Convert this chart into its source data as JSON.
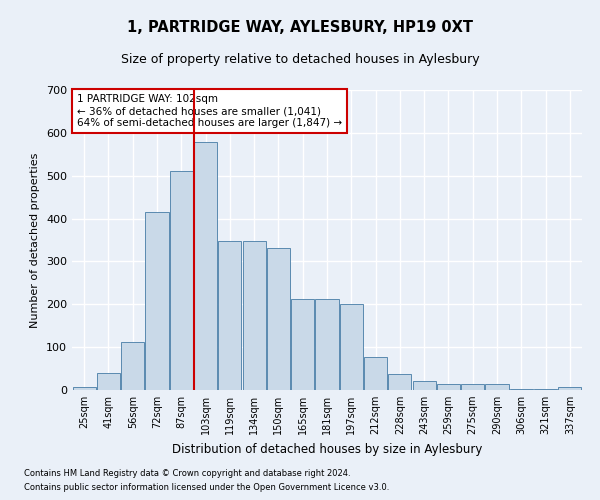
{
  "title": "1, PARTRIDGE WAY, AYLESBURY, HP19 0XT",
  "subtitle": "Size of property relative to detached houses in Aylesbury",
  "xlabel": "Distribution of detached houses by size in Aylesbury",
  "ylabel": "Number of detached properties",
  "categories": [
    "25sqm",
    "41sqm",
    "56sqm",
    "72sqm",
    "87sqm",
    "103sqm",
    "119sqm",
    "134sqm",
    "150sqm",
    "165sqm",
    "181sqm",
    "197sqm",
    "212sqm",
    "228sqm",
    "243sqm",
    "259sqm",
    "275sqm",
    "290sqm",
    "306sqm",
    "321sqm",
    "337sqm"
  ],
  "values": [
    8,
    40,
    113,
    415,
    510,
    578,
    347,
    347,
    332,
    213,
    213,
    200,
    78,
    37,
    20,
    13,
    15,
    15,
    3,
    3,
    7
  ],
  "bar_color": "#c9d9e8",
  "bar_edge_color": "#5a8ab0",
  "highlight_index": 5,
  "highlight_color": "#cc0000",
  "annotation_text": "1 PARTRIDGE WAY: 102sqm\n← 36% of detached houses are smaller (1,041)\n64% of semi-detached houses are larger (1,847) →",
  "annotation_box_color": "white",
  "annotation_box_edge_color": "#cc0000",
  "footnote1": "Contains HM Land Registry data © Crown copyright and database right 2024.",
  "footnote2": "Contains public sector information licensed under the Open Government Licence v3.0.",
  "ylim": [
    0,
    700
  ],
  "yticks": [
    0,
    100,
    200,
    300,
    400,
    500,
    600,
    700
  ],
  "background_color": "#eaf0f8",
  "plot_background_color": "#eaf0f8",
  "grid_color": "#ffffff",
  "title_fontsize": 10.5,
  "subtitle_fontsize": 9,
  "ylabel_fontsize": 8,
  "xlabel_fontsize": 8.5,
  "tick_fontsize": 7,
  "annotation_fontsize": 7.5,
  "footnote_fontsize": 6
}
